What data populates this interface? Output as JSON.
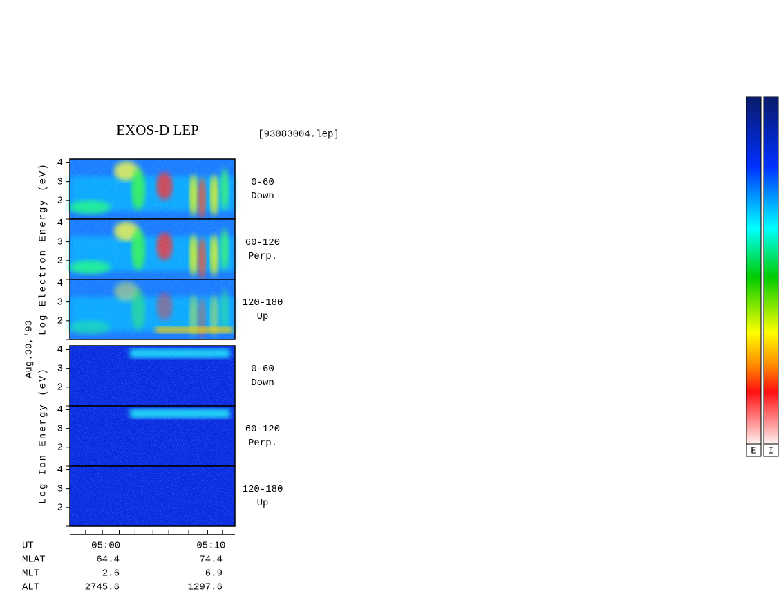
{
  "title": "EXOS-D LEP",
  "file": "[93083004.lep]",
  "date": "Aug.30,'93",
  "electron_axis_label": "Log Electron Energy (eV)",
  "ion_axis_label": "Log Ion Energy (eV)",
  "ylim": [
    1,
    4.2
  ],
  "yticks": [
    2,
    3,
    4
  ],
  "yminorticks": [
    1
  ],
  "panels": [
    {
      "species": "electron",
      "angle": "0-60",
      "direction": "Down"
    },
    {
      "species": "electron",
      "angle": "60-120",
      "direction": "Perp."
    },
    {
      "species": "electron",
      "angle": "120-180",
      "direction": "Up"
    },
    {
      "species": "ion",
      "angle": "0-60",
      "direction": "Down"
    },
    {
      "species": "ion",
      "angle": "60-120",
      "direction": "Perp."
    },
    {
      "species": "ion",
      "angle": "120-180",
      "direction": "Up"
    }
  ],
  "xlim": [
    -3.1,
    12.6
  ],
  "xticks": [
    {
      "value": 0,
      "label": "05:00"
    },
    {
      "value": 10,
      "label": "05:10"
    }
  ],
  "xminorticks": [
    -1.6,
    1.6,
    3.1,
    4.8,
    6.3,
    8.2,
    11.4
  ],
  "ut_label": "UT",
  "ephemeris": [
    {
      "label": "MLAT",
      "values": [
        64.4,
        74.4
      ]
    },
    {
      "label": "MLT",
      "values": [
        2.6,
        6.9
      ]
    },
    {
      "label": "ALT",
      "values": [
        2745.6,
        1297.6
      ]
    }
  ],
  "colorbars": [
    "E",
    "I"
  ]
}
